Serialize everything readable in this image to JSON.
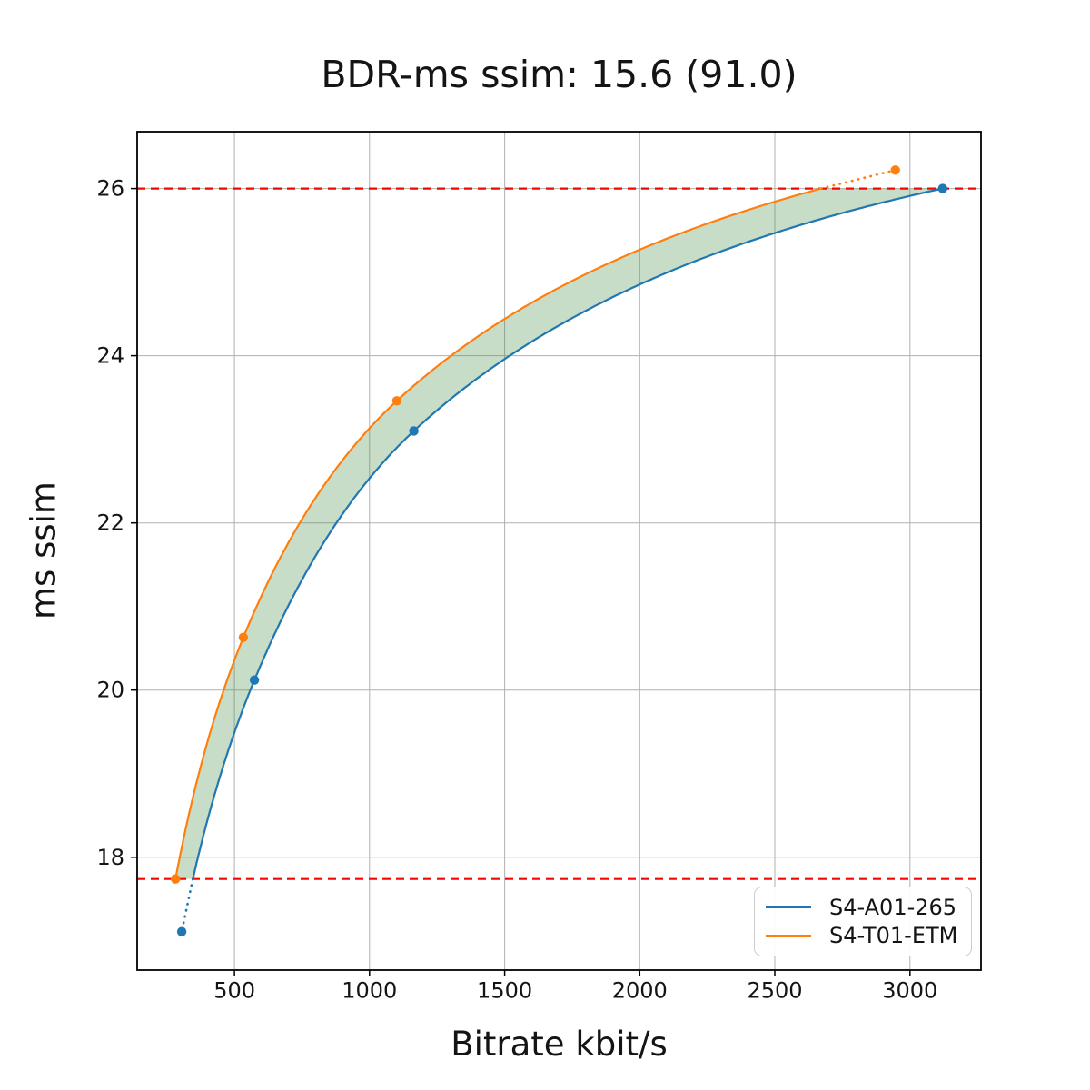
{
  "chart_data": {
    "type": "line",
    "title": "BDR-ms ssim: 15.6 (91.0)",
    "xlabel": "Bitrate kbit/s",
    "ylabel": "ms ssim",
    "xlim": [
      140,
      3263
    ],
    "ylim": [
      16.65,
      26.68
    ],
    "xticks": [
      500,
      1000,
      1500,
      2000,
      2500,
      3000
    ],
    "yticks": [
      18,
      20,
      22,
      24,
      26
    ],
    "grid": true,
    "grid_color": "#b0b0b0",
    "axis_color": "#000000",
    "series": [
      {
        "name": "S4-A01-265",
        "color": "#1f77b4",
        "marker": "circle",
        "x": [
          305,
          574,
          1164,
          3121
        ],
        "y": [
          17.11,
          20.12,
          23.1,
          26.0
        ]
      },
      {
        "name": "S4-T01-ETM",
        "color": "#ff7f0e",
        "marker": "circle",
        "x": [
          282,
          533,
          1101,
          2946
        ],
        "y": [
          17.74,
          20.63,
          23.46,
          26.22
        ]
      }
    ],
    "overlap_band": {
      "y_min": 17.74,
      "y_max": 26.0,
      "fill_color": "#4a8f4a",
      "fill_opacity": 0.3,
      "boundary_line_color": "#ff0000",
      "boundary_line_style": "dashed"
    },
    "legend": {
      "position": "lower right",
      "entries": [
        "S4-A01-265",
        "S4-T01-ETM"
      ]
    }
  }
}
